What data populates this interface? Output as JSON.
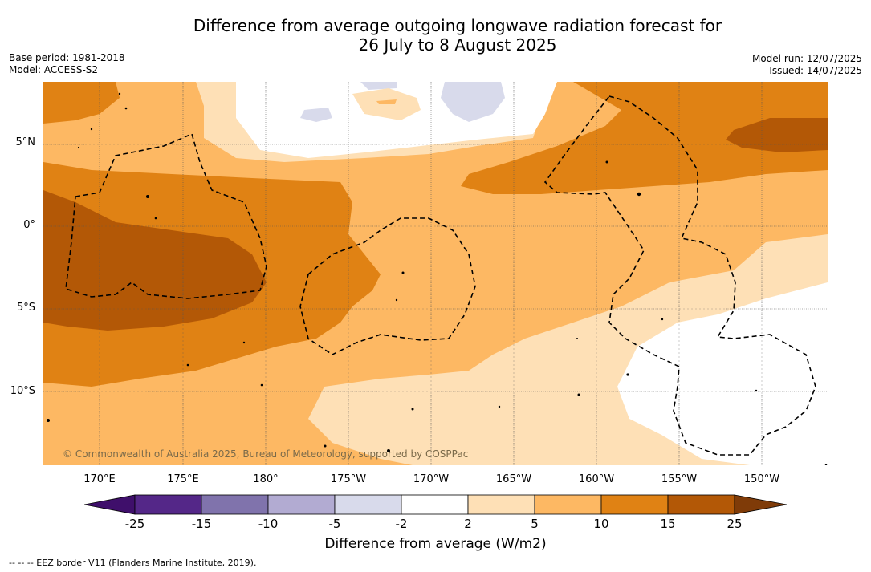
{
  "title": {
    "line1": "Difference from average outgoing longwave radiation forecast for",
    "line2": "26 July to 8 August 2025"
  },
  "meta": {
    "base_period": "Base period: 1981-2018",
    "model": "Model: ACCESS-S2",
    "model_run": "Model run: 12/07/2025",
    "issued": "Issued: 14/07/2025"
  },
  "map": {
    "lat_labels": [
      "5°N",
      "0°",
      "5°S",
      "10°S"
    ],
    "lon_labels": [
      "170°E",
      "175°E",
      "180°",
      "175°W",
      "170°W",
      "165°W",
      "160°W",
      "155°W",
      "150°W"
    ],
    "copyright": "© Commonwealth of Australia 2025, Bureau of Meteorology, supported by COSPPac"
  },
  "colorbar": {
    "colors": [
      "#3f0f6b",
      "#542788",
      "#8073ac",
      "#b2abd2",
      "#d8daeb",
      "#ffffff",
      "#fee0b6",
      "#fdb863",
      "#e08214",
      "#b35806",
      "#7f3b08"
    ],
    "ticks": [
      "-25",
      "-15",
      "-10",
      "-5",
      "-2",
      "2",
      "5",
      "10",
      "15",
      "25"
    ],
    "label": "Difference from average (W/m2)"
  },
  "footnote": "--  --  -- EEZ border V11 (Flanders Marine Institute, 2019)."
}
